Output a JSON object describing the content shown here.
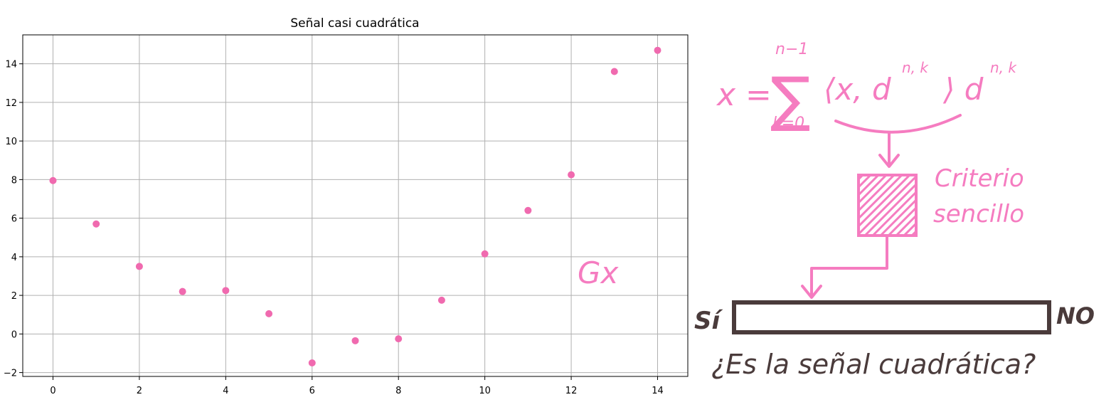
{
  "chart_data": {
    "type": "scatter",
    "title": "Señal casi cuadrática",
    "xlabel": "",
    "ylabel": "",
    "xlim": [
      -0.7,
      14.7
    ],
    "ylim": [
      -2.2,
      15.5
    ],
    "grid": true,
    "x_ticks": [
      0,
      2,
      4,
      6,
      8,
      10,
      12,
      14
    ],
    "y_ticks": [
      -2,
      0,
      2,
      4,
      6,
      8,
      10,
      12,
      14
    ],
    "x": [
      0,
      1,
      2,
      3,
      4,
      5,
      6,
      7,
      8,
      9,
      10,
      11,
      12,
      13,
      14
    ],
    "y": [
      7.95,
      5.7,
      3.5,
      2.2,
      2.25,
      1.05,
      -1.5,
      -0.35,
      -0.25,
      1.75,
      4.15,
      6.4,
      8.25,
      13.6,
      14.7
    ],
    "marker_color": "#f06aaf"
  },
  "annotation": {
    "formula_lhs": "x =",
    "sum_upper": "n−1",
    "sum_lower": "k=0",
    "sum_term": "⟨x, d",
    "sum_term_sup": "n, k",
    "sum_term_close": "⟩ d",
    "sum_term_close_sup": "n, k",
    "block_label_line1": "Criterio",
    "block_label_line2": "sencillo",
    "operator_label": "Gx",
    "yes_label": "Sí",
    "no_label": "NO",
    "question": "¿Es la señal cuadrática?",
    "pink": "#f57cc0",
    "dark": "#4a3b3b"
  }
}
